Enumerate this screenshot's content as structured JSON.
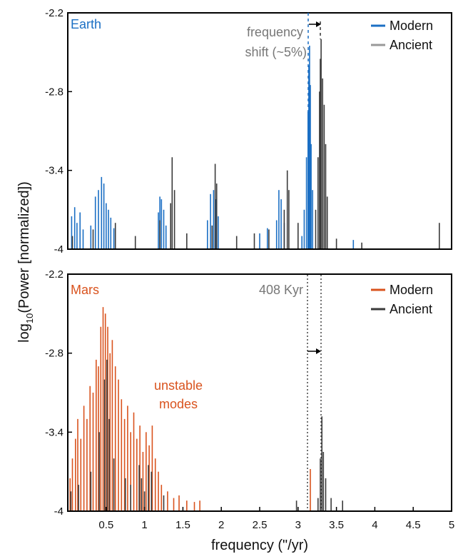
{
  "chart_data": [
    {
      "type": "line",
      "panel_label": "Earth",
      "xlim": [
        0,
        5
      ],
      "ylim": [
        -4,
        -2.2
      ],
      "yticks": [
        "-2.2",
        "-2.8",
        "-3.4",
        "-4"
      ],
      "legend_position": "top-right",
      "series": [
        {
          "name": "Modern",
          "color": "#1b6fc4",
          "peaks": [
            [
              0.05,
              -3.75
            ],
            [
              0.09,
              -3.68
            ],
            [
              0.12,
              -3.8
            ],
            [
              0.16,
              -3.72
            ],
            [
              0.2,
              -3.85
            ],
            [
              0.3,
              -3.82
            ],
            [
              0.36,
              -3.6
            ],
            [
              0.4,
              -3.55
            ],
            [
              0.44,
              -3.45
            ],
            [
              0.47,
              -3.5
            ],
            [
              0.5,
              -3.65
            ],
            [
              0.53,
              -3.7
            ],
            [
              0.56,
              -3.76
            ],
            [
              0.6,
              -3.84
            ],
            [
              1.18,
              -3.72
            ],
            [
              1.2,
              -3.6
            ],
            [
              1.22,
              -3.62
            ],
            [
              1.25,
              -3.7
            ],
            [
              1.28,
              -3.82
            ],
            [
              1.82,
              -3.78
            ],
            [
              1.86,
              -3.58
            ],
            [
              1.9,
              -3.55
            ],
            [
              1.93,
              -3.62
            ],
            [
              1.96,
              -3.75
            ],
            [
              2.5,
              -3.88
            ],
            [
              2.6,
              -3.84
            ],
            [
              2.72,
              -3.78
            ],
            [
              2.75,
              -3.55
            ],
            [
              2.78,
              -3.62
            ],
            [
              2.82,
              -3.8
            ],
            [
              3.05,
              -3.9
            ],
            [
              3.08,
              -3.7
            ],
            [
              3.11,
              -3.3
            ],
            [
              3.13,
              -2.95
            ],
            [
              3.14,
              -2.6
            ],
            [
              3.15,
              -2.45
            ],
            [
              3.16,
              -2.75
            ],
            [
              3.17,
              -3.2
            ],
            [
              3.19,
              -3.55
            ],
            [
              3.72,
              -3.93
            ]
          ]
        },
        {
          "name": "Ancient",
          "color": "#3a3a3a",
          "peaks": [
            [
              0.06,
              -3.9
            ],
            [
              0.33,
              -3.85
            ],
            [
              0.62,
              -3.8
            ],
            [
              0.88,
              -3.9
            ],
            [
              1.2,
              -3.78
            ],
            [
              1.34,
              -3.65
            ],
            [
              1.36,
              -3.3
            ],
            [
              1.39,
              -3.55
            ],
            [
              1.55,
              -3.88
            ],
            [
              1.88,
              -3.82
            ],
            [
              1.92,
              -3.35
            ],
            [
              1.94,
              -3.5
            ],
            [
              2.2,
              -3.9
            ],
            [
              2.43,
              -3.88
            ],
            [
              2.62,
              -3.85
            ],
            [
              2.82,
              -3.7
            ],
            [
              2.86,
              -3.4
            ],
            [
              2.88,
              -3.55
            ],
            [
              3.0,
              -3.8
            ],
            [
              3.23,
              -3.7
            ],
            [
              3.26,
              -3.3
            ],
            [
              3.28,
              -2.8
            ],
            [
              3.29,
              -2.55
            ],
            [
              3.3,
              -2.4
            ],
            [
              3.32,
              -2.7
            ],
            [
              3.34,
              -2.9
            ],
            [
              3.36,
              -3.2
            ],
            [
              3.38,
              -3.6
            ],
            [
              3.5,
              -3.92
            ],
            [
              3.83,
              -3.95
            ],
            [
              4.84,
              -3.8
            ]
          ]
        }
      ],
      "annotation": {
        "lines": [
          "frequency",
          "shift (~5%)"
        ],
        "color": "#777777",
        "from_x": 3.15,
        "to_x": 3.31
      }
    },
    {
      "type": "line",
      "panel_label": "Mars",
      "xlim": [
        0,
        5
      ],
      "ylim": [
        -4,
        -2.2
      ],
      "xticks": [
        "0.5",
        "1",
        "1.5",
        "2",
        "2.5",
        "3",
        "3.5",
        "4",
        "4.5",
        "5"
      ],
      "yticks": [
        "-2.2",
        "-2.8",
        "-3.4",
        "-4"
      ],
      "xlabel": "frequency (\"/yr)",
      "legend_position": "top-right",
      "series": [
        {
          "name": "Modern",
          "color": "#d9531e",
          "peaks": [
            [
              0.03,
              -3.75
            ],
            [
              0.06,
              -3.6
            ],
            [
              0.1,
              -3.45
            ],
            [
              0.13,
              -3.3
            ],
            [
              0.17,
              -3.45
            ],
            [
              0.21,
              -3.2
            ],
            [
              0.25,
              -3.3
            ],
            [
              0.29,
              -3.05
            ],
            [
              0.33,
              -3.1
            ],
            [
              0.37,
              -2.85
            ],
            [
              0.4,
              -2.9
            ],
            [
              0.43,
              -2.6
            ],
            [
              0.46,
              -2.45
            ],
            [
              0.49,
              -2.5
            ],
            [
              0.52,
              -2.6
            ],
            [
              0.55,
              -2.8
            ],
            [
              0.58,
              -2.7
            ],
            [
              0.62,
              -2.9
            ],
            [
              0.66,
              -3.0
            ],
            [
              0.7,
              -3.15
            ],
            [
              0.74,
              -3.3
            ],
            [
              0.78,
              -3.2
            ],
            [
              0.82,
              -3.4
            ],
            [
              0.86,
              -3.25
            ],
            [
              0.9,
              -3.45
            ],
            [
              0.94,
              -3.35
            ],
            [
              0.98,
              -3.55
            ],
            [
              1.02,
              -3.4
            ],
            [
              1.06,
              -3.5
            ],
            [
              1.1,
              -3.35
            ],
            [
              1.14,
              -3.6
            ],
            [
              1.18,
              -3.7
            ],
            [
              1.22,
              -3.8
            ],
            [
              1.3,
              -3.85
            ],
            [
              1.38,
              -3.9
            ],
            [
              1.45,
              -3.88
            ],
            [
              1.55,
              -3.92
            ],
            [
              1.65,
              -3.93
            ],
            [
              1.72,
              -3.92
            ],
            [
              3.16,
              -3.68
            ]
          ]
        },
        {
          "name": "Ancient",
          "color": "#3a3a3a",
          "peaks": [
            [
              0.04,
              -3.85
            ],
            [
              0.14,
              -3.8
            ],
            [
              0.3,
              -3.7
            ],
            [
              0.41,
              -3.4
            ],
            [
              0.48,
              -3.0
            ],
            [
              0.51,
              -2.85
            ],
            [
              0.54,
              -3.3
            ],
            [
              0.6,
              -3.6
            ],
            [
              0.75,
              -3.75
            ],
            [
              0.82,
              -3.8
            ],
            [
              0.93,
              -3.65
            ],
            [
              0.96,
              -3.75
            ],
            [
              1.0,
              -3.85
            ],
            [
              1.05,
              -3.65
            ],
            [
              1.09,
              -3.7
            ],
            [
              1.25,
              -3.88
            ],
            [
              2.98,
              -3.92
            ],
            [
              3.26,
              -3.9
            ],
            [
              3.29,
              -3.6
            ],
            [
              3.31,
              -3.28
            ],
            [
              3.33,
              -3.55
            ],
            [
              3.36,
              -3.75
            ],
            [
              3.43,
              -3.9
            ],
            [
              3.58,
              -3.92
            ]
          ]
        }
      ],
      "vlines": [
        3.16,
        3.31
      ],
      "annotations": [
        {
          "text": "408 Kyr",
          "color": "#777777"
        },
        {
          "lines": [
            "unstable",
            "modes"
          ],
          "color": "#d9531e",
          "x": 0.95,
          "y": -3.05
        }
      ]
    }
  ],
  "shared": {
    "ylabel_main": "log",
    "ylabel_sub": "10",
    "ylabel_rest": "(Power [normalized])"
  }
}
